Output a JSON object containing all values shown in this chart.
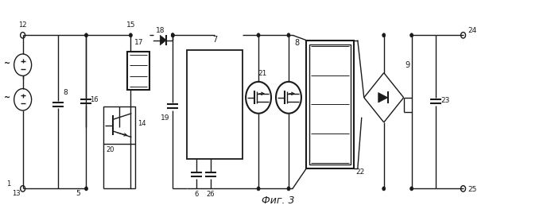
{
  "title": "Фиг. 3",
  "bg_color": "#ffffff",
  "line_color": "#1a1a1a",
  "fig_width": 6.98,
  "fig_height": 2.63,
  "dpi": 100
}
